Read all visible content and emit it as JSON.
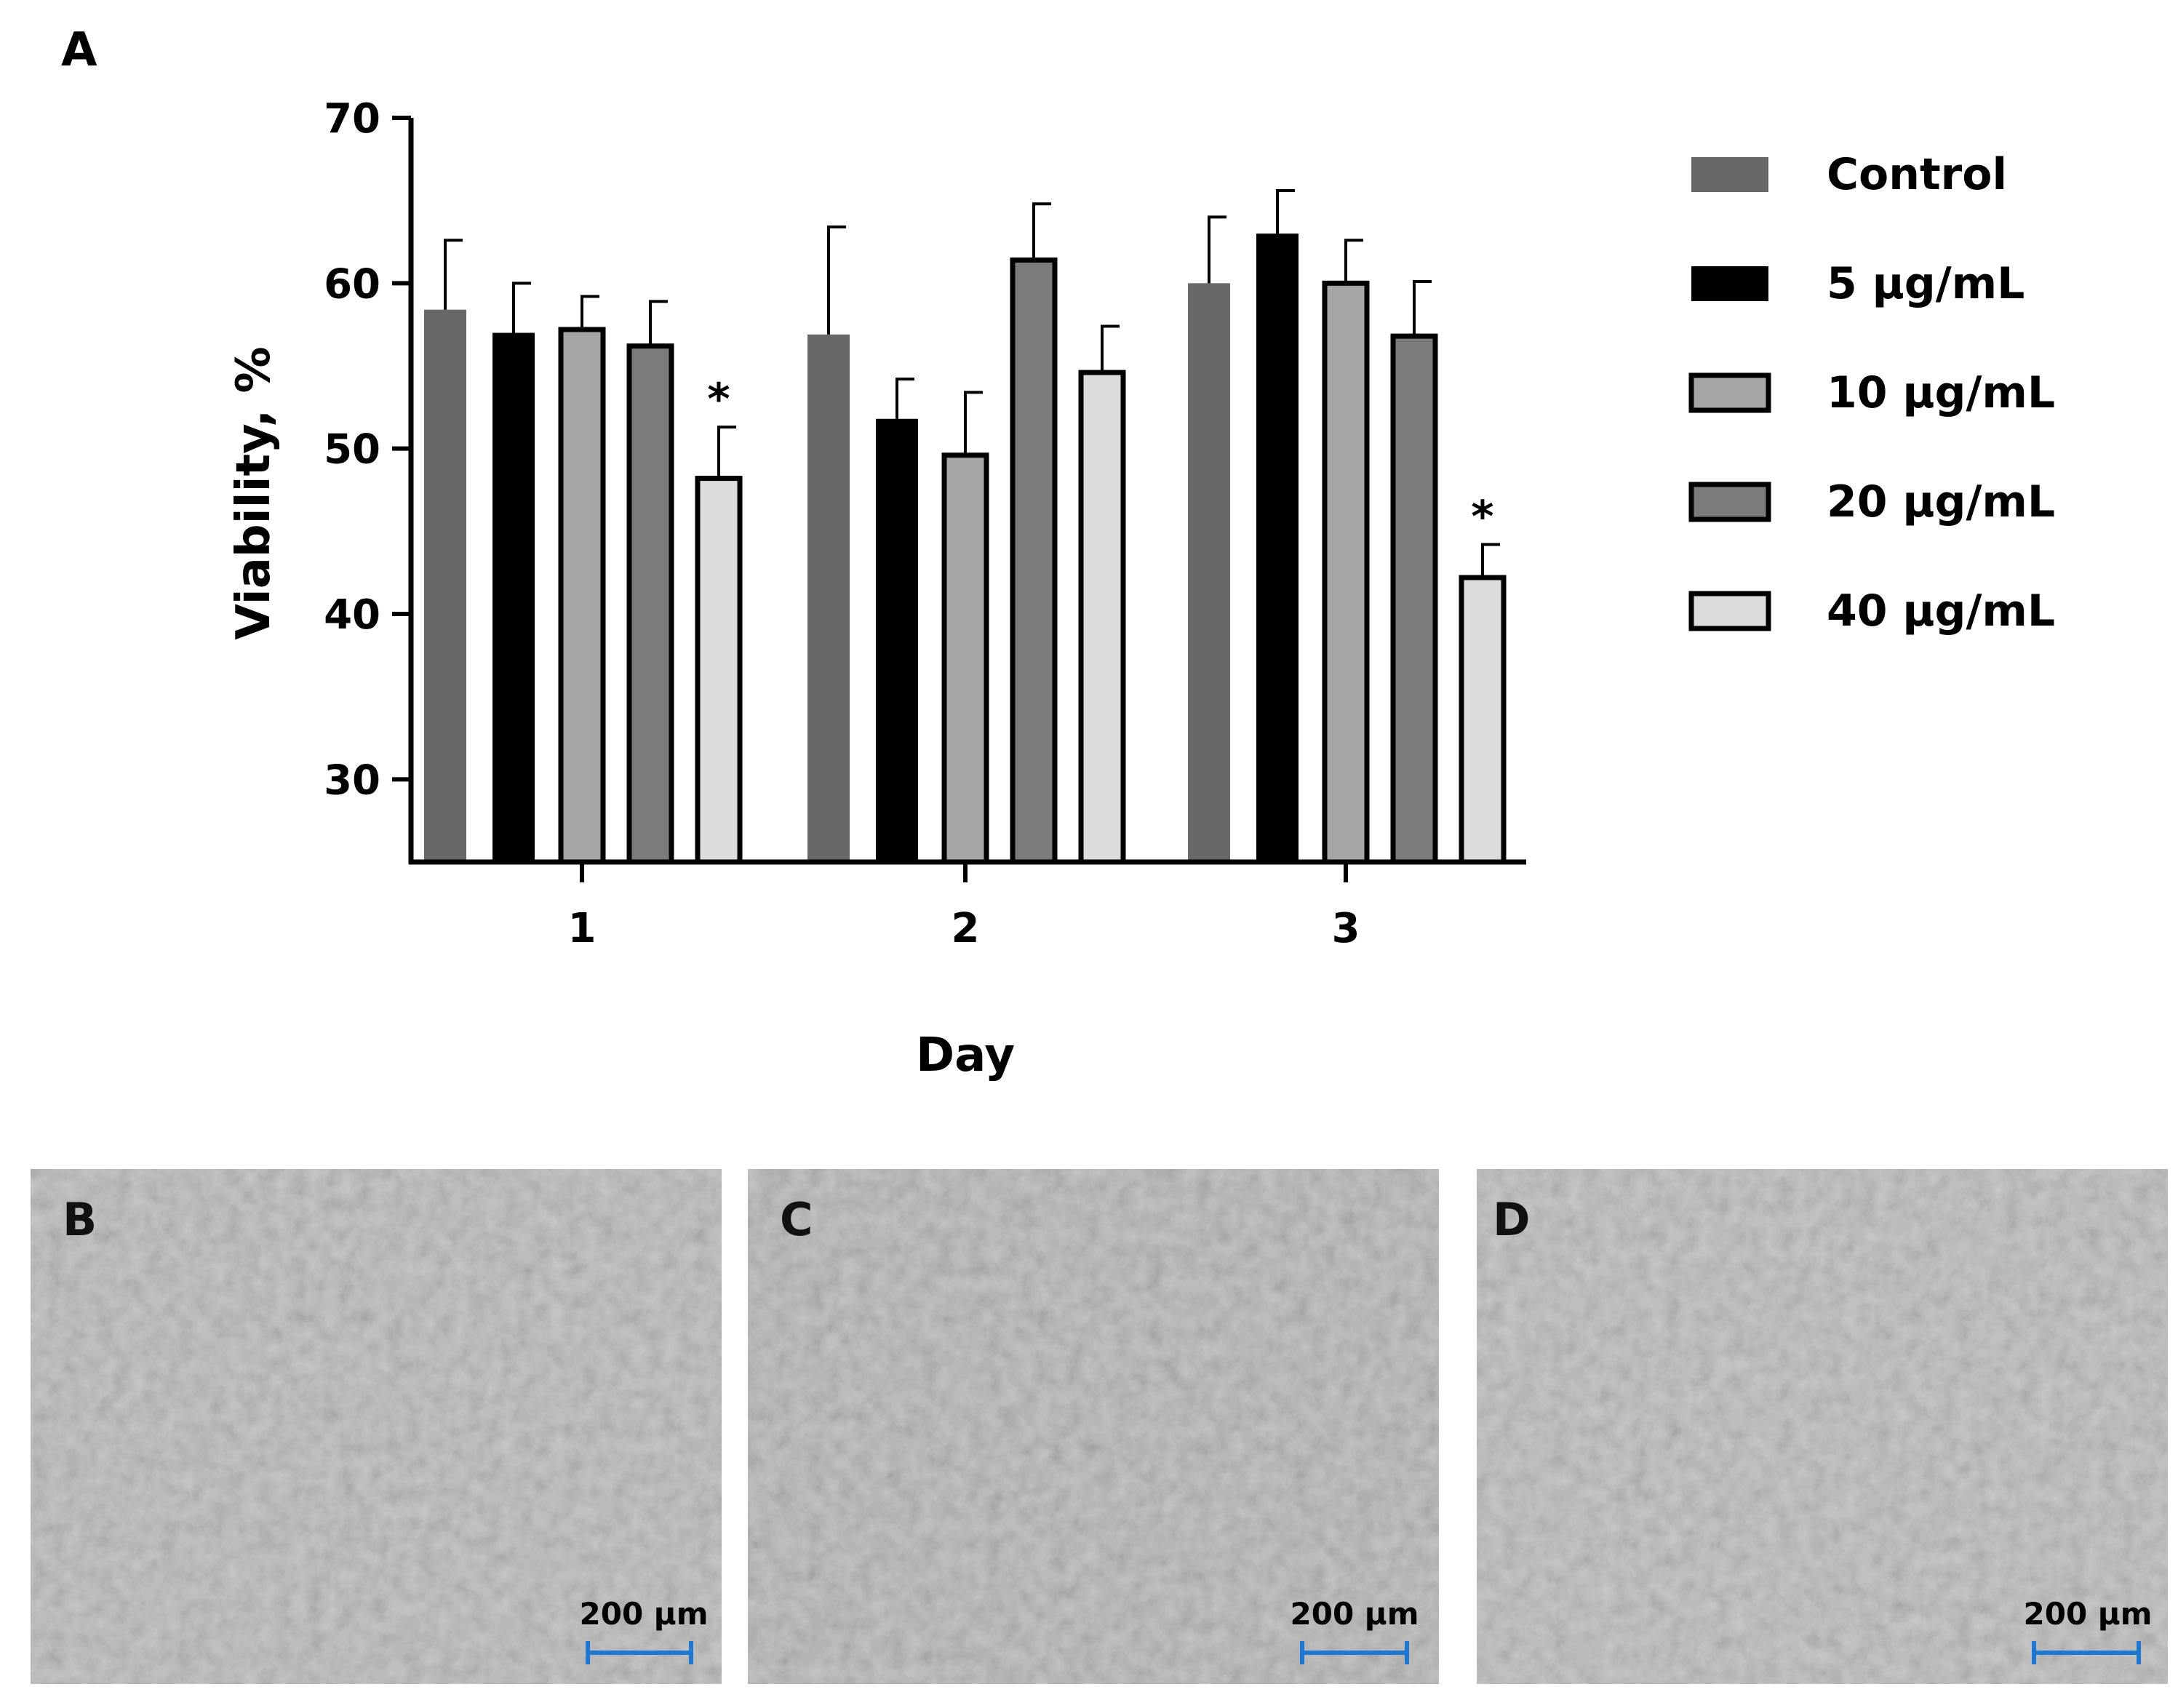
{
  "panel_labels": {
    "a": "A",
    "b": "B",
    "c": "C",
    "d": "D"
  },
  "chart_data": {
    "type": "bar",
    "title": "",
    "xlabel": "Day",
    "ylabel": "Viability, %",
    "categories": [
      "1",
      "2",
      "3"
    ],
    "ylim": [
      25,
      70
    ],
    "yticks": [
      30,
      40,
      50,
      60,
      70
    ],
    "grid": false,
    "legend_position": "right",
    "series": [
      {
        "name": "Control",
        "values": [
          58.4,
          56.9,
          60.0
        ],
        "errors": [
          4.2,
          6.5,
          4.0
        ],
        "color": "#686868",
        "outline": false
      },
      {
        "name": "5 μg/mL",
        "values": [
          57.0,
          51.8,
          63.0
        ],
        "errors": [
          3.0,
          2.4,
          2.6
        ],
        "color": "#000000",
        "outline": false
      },
      {
        "name": "10 μg/mL",
        "values": [
          57.2,
          49.6,
          60.0
        ],
        "errors": [
          2.0,
          3.8,
          2.6
        ],
        "color": "#a6a6a6",
        "outline": true
      },
      {
        "name": "20 μg/mL",
        "values": [
          56.2,
          61.4,
          56.8
        ],
        "errors": [
          2.7,
          3.4,
          3.3
        ],
        "color": "#7b7b7b",
        "outline": true
      },
      {
        "name": "40 μg/mL",
        "values": [
          48.2,
          54.6,
          42.2
        ],
        "errors": [
          3.1,
          2.8,
          2.0
        ],
        "color": "#dcdcdc",
        "outline": true
      }
    ],
    "annotations": [
      {
        "text": "*",
        "category": "1",
        "series": "40 μg/mL"
      },
      {
        "text": "*",
        "category": "3",
        "series": "40 μg/mL"
      }
    ]
  },
  "micrographs": [
    {
      "label": "B",
      "scale_bar": "200 µm"
    },
    {
      "label": "C",
      "scale_bar": "200 µm"
    },
    {
      "label": "D",
      "scale_bar": "200 µm"
    }
  ],
  "colors": {
    "scale_bar": "#1e78d2",
    "micrograph_bg": "#b6b6b6",
    "axis": "#000000"
  }
}
